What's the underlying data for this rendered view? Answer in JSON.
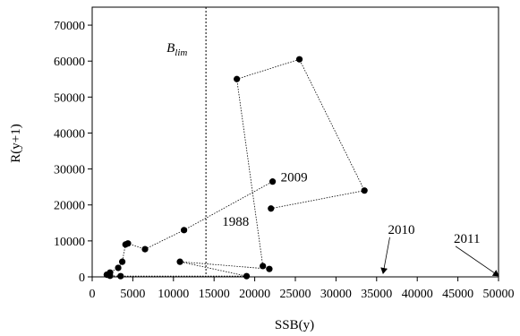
{
  "chart_data": {
    "type": "scatter",
    "title": "",
    "xlabel": "SSB(y)",
    "ylabel": "R(y+1)",
    "xlim": [
      0,
      50000
    ],
    "ylim": [
      0,
      75000
    ],
    "xticks": [
      0,
      5000,
      10000,
      15000,
      20000,
      25000,
      30000,
      35000,
      40000,
      45000,
      50000
    ],
    "yticks": [
      0,
      10000,
      20000,
      30000,
      40000,
      50000,
      60000,
      70000
    ],
    "grid": false,
    "legend": "none",
    "reference_line": {
      "label_base": "B",
      "label_sub": "lim",
      "x": 14000,
      "style": "dotted"
    },
    "series": [
      {
        "connected": true,
        "points": [
          {
            "x": 22000,
            "y": 19000
          },
          {
            "x": 33500,
            "y": 24000
          },
          {
            "x": 25500,
            "y": 60500
          },
          {
            "x": 17800,
            "y": 55000
          },
          {
            "x": 21000,
            "y": 3000
          },
          {
            "x": 21800,
            "y": 2200
          },
          {
            "x": 10800,
            "y": 4200
          },
          {
            "x": 19000,
            "y": 200
          },
          {
            "x": 3500,
            "y": 200
          },
          {
            "x": 2200,
            "y": 300
          },
          {
            "x": 1800,
            "y": 600
          },
          {
            "x": 2200,
            "y": 1200
          },
          {
            "x": 3200,
            "y": 2500
          },
          {
            "x": 3700,
            "y": 4200
          },
          {
            "x": 4100,
            "y": 9000
          },
          {
            "x": 4400,
            "y": 9300
          },
          {
            "x": 6500,
            "y": 7700
          },
          {
            "x": 11300,
            "y": 13000
          },
          {
            "x": 22200,
            "y": 26500
          }
        ]
      }
    ],
    "annotations": [
      {
        "text": "1988",
        "anchor": {
          "x": 16000,
          "y": 14200
        },
        "arrow": false
      },
      {
        "text": "2009",
        "anchor": {
          "x": 23200,
          "y": 26500
        },
        "arrow": false
      },
      {
        "text": "2010",
        "anchor": {
          "x": 36400,
          "y": 12000
        },
        "arrow_to": {
          "x": 35800,
          "y": 1000
        }
      },
      {
        "text": "2011",
        "anchor": {
          "x": 44500,
          "y": 9500
        },
        "arrow_to": {
          "x": 50000,
          "y": 300
        }
      }
    ]
  }
}
